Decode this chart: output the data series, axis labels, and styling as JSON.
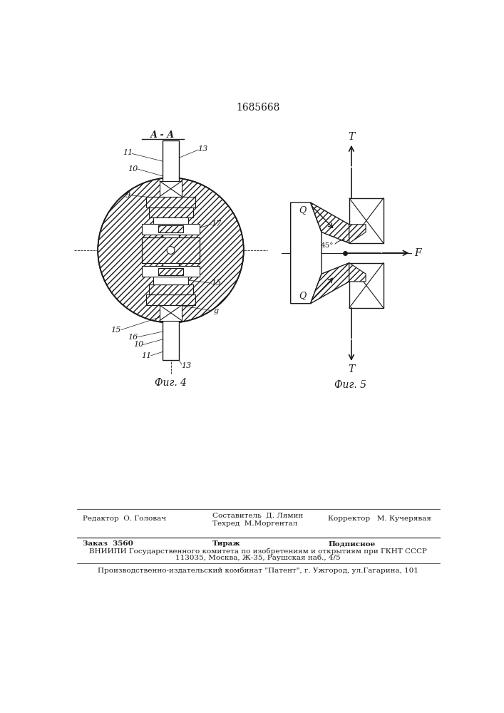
{
  "patent_number": "1685668",
  "fig4_label": "А - А",
  "fig4_caption": "Фиг. 4",
  "fig5_caption": "Фиг. 5",
  "line_color": "#1a1a1a",
  "footer_line1_left": "Редактор  О. Головач",
  "footer_line1_center_1": "Составитель  Д. Лямин",
  "footer_line1_center_2": "Техред  М.Моргентал",
  "footer_line1_right": "Корректор   М. Кучерявая",
  "footer_line2_left": "Заказ  3560",
  "footer_line2_mid": "Тираж",
  "footer_line2_right": "Подписное",
  "footer_line3": "ВНИИПИ Государственного комитета по изобретениям и открытиям при ГКНТ СССР",
  "footer_line4": "113035, Москва, Ж-35, Раушская наб., 4/5",
  "footer_line5": "Производственно-издательский комбинат \"Патент\", г. Ужгород, ул.Гагарина, 101"
}
